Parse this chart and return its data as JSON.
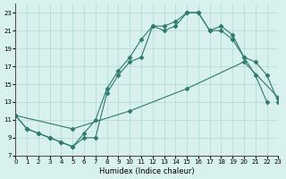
{
  "line1_x": [
    0,
    1,
    2,
    3,
    4,
    5,
    6,
    7,
    8,
    9,
    10,
    11,
    12,
    13,
    14,
    15,
    16,
    17,
    18,
    19,
    20,
    21,
    22
  ],
  "line1_y": [
    11.5,
    10.0,
    9.5,
    9.0,
    8.5,
    8.0,
    9.0,
    9.0,
    14.0,
    16.0,
    17.5,
    18.0,
    21.5,
    21.0,
    21.5,
    23.0,
    23.0,
    21.0,
    21.0,
    20.0,
    18.0,
    16.0,
    13.0
  ],
  "line2_x": [
    0,
    1,
    2,
    3,
    4,
    5,
    6,
    7,
    8,
    9,
    10,
    11,
    12,
    13,
    14,
    15,
    16,
    17,
    18,
    19,
    20,
    21,
    22,
    23
  ],
  "line2_y": [
    11.5,
    10.0,
    9.5,
    9.0,
    8.5,
    8.0,
    9.5,
    11.0,
    14.5,
    16.5,
    18.0,
    20.0,
    21.5,
    21.5,
    22.0,
    23.0,
    23.0,
    21.0,
    21.5,
    20.5,
    18.0,
    17.5,
    16.0,
    13.0
  ],
  "line3_x": [
    0,
    5,
    10,
    15,
    20,
    23
  ],
  "line3_y": [
    11.5,
    10.0,
    12.0,
    14.5,
    17.5,
    13.5
  ],
  "xlabel": "Humidex (Indice chaleur)",
  "xlim": [
    0,
    23
  ],
  "ylim": [
    7,
    24
  ],
  "yticks": [
    7,
    9,
    11,
    13,
    15,
    17,
    19,
    21,
    23
  ],
  "xticks": [
    0,
    1,
    2,
    3,
    4,
    5,
    6,
    7,
    8,
    9,
    10,
    11,
    12,
    13,
    14,
    15,
    16,
    17,
    18,
    19,
    20,
    21,
    22,
    23
  ],
  "line_color": "#2d7a6e",
  "bg_color": "#d8f0ee",
  "grid_color": "#b0d8d4"
}
